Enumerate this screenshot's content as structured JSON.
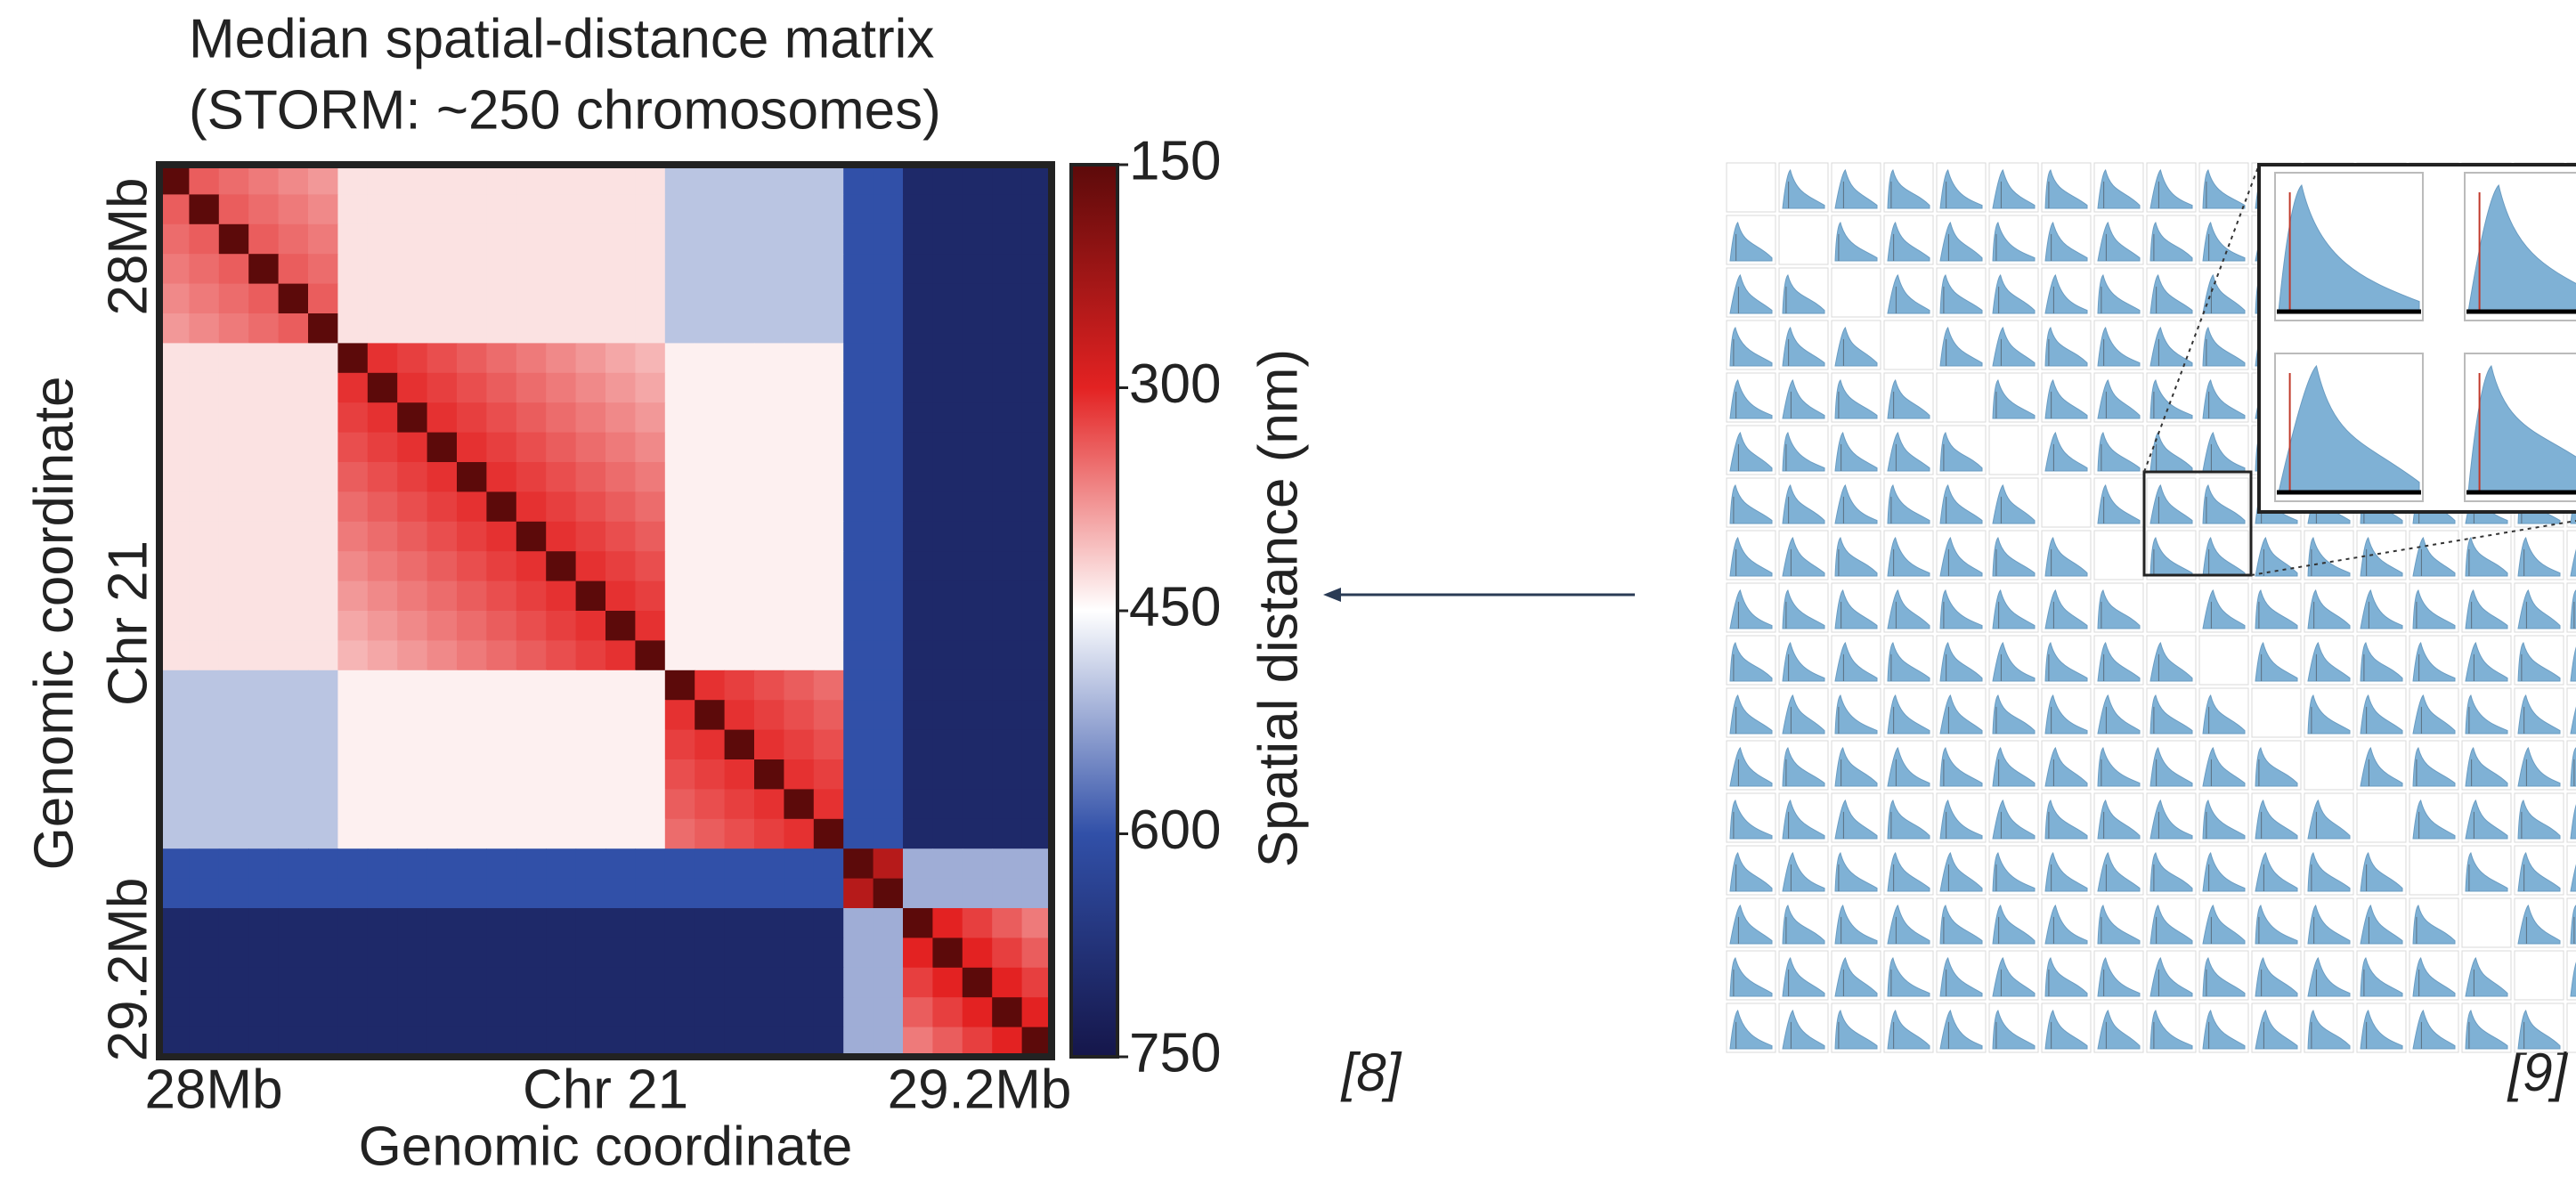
{
  "chart_data": {
    "type": "heatmap",
    "title": [
      "Median spatial-distance matrix",
      "(STORM: ~250 chromosomes)"
    ],
    "x_label": "Genomic coordinate",
    "y_label": [
      "Genomic coordinate",
      "Chr 21"
    ],
    "x_ticklabels": [
      "28Mb",
      "Chr 21",
      "29.2Mb"
    ],
    "y_ticklabels": [
      "28Mb",
      "29.2Mb"
    ],
    "colorbar_label": "Spatial distance (nm)",
    "zlim": [
      150,
      750
    ],
    "zticks": [
      150,
      300,
      450,
      600,
      750
    ],
    "colorscale": [
      "#5c0a0a",
      "#e32222",
      "#ffffff",
      "#3150a8",
      "#15164a"
    ],
    "z": [
      [
        150,
        340,
        350,
        360,
        370,
        380,
        430,
        430,
        430,
        430,
        430,
        430,
        430,
        430,
        430,
        430,
        430,
        500,
        500,
        500,
        500,
        500,
        500,
        600,
        600,
        700,
        700,
        700,
        700,
        700
      ],
      [
        340,
        150,
        340,
        350,
        360,
        370,
        430,
        430,
        430,
        430,
        430,
        430,
        430,
        430,
        430,
        430,
        430,
        500,
        500,
        500,
        500,
        500,
        500,
        600,
        600,
        700,
        700,
        700,
        700,
        700
      ],
      [
        350,
        340,
        150,
        340,
        350,
        360,
        430,
        430,
        430,
        430,
        430,
        430,
        430,
        430,
        430,
        430,
        430,
        500,
        500,
        500,
        500,
        500,
        500,
        600,
        600,
        700,
        700,
        700,
        700,
        700
      ],
      [
        360,
        350,
        340,
        150,
        340,
        350,
        430,
        430,
        430,
        430,
        430,
        430,
        430,
        430,
        430,
        430,
        430,
        500,
        500,
        500,
        500,
        500,
        500,
        600,
        600,
        700,
        700,
        700,
        700,
        700
      ],
      [
        370,
        360,
        350,
        340,
        150,
        340,
        430,
        430,
        430,
        430,
        430,
        430,
        430,
        430,
        430,
        430,
        430,
        500,
        500,
        500,
        500,
        500,
        500,
        600,
        600,
        700,
        700,
        700,
        700,
        700
      ],
      [
        380,
        370,
        360,
        350,
        340,
        150,
        430,
        430,
        430,
        430,
        430,
        430,
        430,
        430,
        430,
        430,
        430,
        500,
        500,
        500,
        500,
        500,
        500,
        600,
        600,
        700,
        700,
        700,
        700,
        700
      ],
      [
        430,
        430,
        430,
        430,
        430,
        430,
        150,
        310,
        320,
        330,
        340,
        350,
        360,
        370,
        380,
        390,
        400,
        440,
        440,
        440,
        440,
        440,
        440,
        600,
        600,
        700,
        700,
        700,
        700,
        700
      ],
      [
        430,
        430,
        430,
        430,
        430,
        430,
        310,
        150,
        310,
        320,
        330,
        340,
        350,
        360,
        370,
        380,
        390,
        440,
        440,
        440,
        440,
        440,
        440,
        600,
        600,
        700,
        700,
        700,
        700,
        700
      ],
      [
        430,
        430,
        430,
        430,
        430,
        430,
        320,
        310,
        150,
        310,
        320,
        330,
        340,
        350,
        360,
        370,
        380,
        440,
        440,
        440,
        440,
        440,
        440,
        600,
        600,
        700,
        700,
        700,
        700,
        700
      ],
      [
        430,
        430,
        430,
        430,
        430,
        430,
        330,
        320,
        310,
        150,
        310,
        320,
        330,
        340,
        350,
        360,
        370,
        440,
        440,
        440,
        440,
        440,
        440,
        600,
        600,
        700,
        700,
        700,
        700,
        700
      ],
      [
        430,
        430,
        430,
        430,
        430,
        430,
        340,
        330,
        320,
        310,
        150,
        310,
        320,
        330,
        340,
        350,
        360,
        440,
        440,
        440,
        440,
        440,
        440,
        600,
        600,
        700,
        700,
        700,
        700,
        700
      ],
      [
        430,
        430,
        430,
        430,
        430,
        430,
        350,
        340,
        330,
        320,
        310,
        150,
        310,
        320,
        330,
        340,
        350,
        440,
        440,
        440,
        440,
        440,
        440,
        600,
        600,
        700,
        700,
        700,
        700,
        700
      ],
      [
        430,
        430,
        430,
        430,
        430,
        430,
        360,
        350,
        340,
        330,
        320,
        310,
        150,
        310,
        320,
        330,
        340,
        440,
        440,
        440,
        440,
        440,
        440,
        600,
        600,
        700,
        700,
        700,
        700,
        700
      ],
      [
        430,
        430,
        430,
        430,
        430,
        430,
        370,
        360,
        350,
        340,
        330,
        320,
        310,
        150,
        310,
        320,
        330,
        440,
        440,
        440,
        440,
        440,
        440,
        600,
        600,
        700,
        700,
        700,
        700,
        700
      ],
      [
        430,
        430,
        430,
        430,
        430,
        430,
        380,
        370,
        360,
        350,
        340,
        330,
        320,
        310,
        150,
        310,
        320,
        440,
        440,
        440,
        440,
        440,
        440,
        600,
        600,
        700,
        700,
        700,
        700,
        700
      ],
      [
        430,
        430,
        430,
        430,
        430,
        430,
        390,
        380,
        370,
        360,
        350,
        340,
        330,
        320,
        310,
        150,
        310,
        440,
        440,
        440,
        440,
        440,
        440,
        600,
        600,
        700,
        700,
        700,
        700,
        700
      ],
      [
        430,
        430,
        430,
        430,
        430,
        430,
        400,
        390,
        380,
        370,
        360,
        350,
        340,
        330,
        320,
        310,
        150,
        440,
        440,
        440,
        440,
        440,
        440,
        600,
        600,
        700,
        700,
        700,
        700,
        700
      ],
      [
        500,
        500,
        500,
        500,
        500,
        500,
        440,
        440,
        440,
        440,
        440,
        440,
        440,
        440,
        440,
        440,
        440,
        150,
        310,
        320,
        330,
        340,
        350,
        600,
        600,
        700,
        700,
        700,
        700,
        700
      ],
      [
        500,
        500,
        500,
        500,
        500,
        500,
        440,
        440,
        440,
        440,
        440,
        440,
        440,
        440,
        440,
        440,
        440,
        310,
        150,
        310,
        320,
        330,
        340,
        600,
        600,
        700,
        700,
        700,
        700,
        700
      ],
      [
        500,
        500,
        500,
        500,
        500,
        500,
        440,
        440,
        440,
        440,
        440,
        440,
        440,
        440,
        440,
        440,
        440,
        320,
        310,
        150,
        310,
        320,
        330,
        600,
        600,
        700,
        700,
        700,
        700,
        700
      ],
      [
        500,
        500,
        500,
        500,
        500,
        500,
        440,
        440,
        440,
        440,
        440,
        440,
        440,
        440,
        440,
        440,
        440,
        330,
        320,
        310,
        150,
        310,
        320,
        600,
        600,
        700,
        700,
        700,
        700,
        700
      ],
      [
        500,
        500,
        500,
        500,
        500,
        500,
        440,
        440,
        440,
        440,
        440,
        440,
        440,
        440,
        440,
        440,
        440,
        340,
        330,
        320,
        310,
        150,
        310,
        600,
        600,
        700,
        700,
        700,
        700,
        700
      ],
      [
        500,
        500,
        500,
        500,
        500,
        500,
        440,
        440,
        440,
        440,
        440,
        440,
        440,
        440,
        440,
        440,
        440,
        350,
        340,
        330,
        320,
        310,
        150,
        600,
        600,
        700,
        700,
        700,
        700,
        700
      ],
      [
        600,
        600,
        600,
        600,
        600,
        600,
        600,
        600,
        600,
        600,
        600,
        600,
        600,
        600,
        600,
        600,
        600,
        600,
        600,
        600,
        600,
        600,
        600,
        150,
        250,
        520,
        520,
        520,
        520,
        520
      ],
      [
        600,
        600,
        600,
        600,
        600,
        600,
        600,
        600,
        600,
        600,
        600,
        600,
        600,
        600,
        600,
        600,
        600,
        600,
        600,
        600,
        600,
        600,
        600,
        250,
        150,
        520,
        520,
        520,
        520,
        520
      ],
      [
        700,
        700,
        700,
        700,
        700,
        700,
        700,
        700,
        700,
        700,
        700,
        700,
        700,
        700,
        700,
        700,
        700,
        700,
        700,
        700,
        700,
        700,
        700,
        520,
        520,
        150,
        300,
        320,
        340,
        360
      ],
      [
        700,
        700,
        700,
        700,
        700,
        700,
        700,
        700,
        700,
        700,
        700,
        700,
        700,
        700,
        700,
        700,
        700,
        700,
        700,
        700,
        700,
        700,
        700,
        520,
        520,
        300,
        150,
        300,
        320,
        340
      ],
      [
        700,
        700,
        700,
        700,
        700,
        700,
        700,
        700,
        700,
        700,
        700,
        700,
        700,
        700,
        700,
        700,
        700,
        700,
        700,
        700,
        700,
        700,
        700,
        520,
        520,
        320,
        300,
        150,
        300,
        320
      ],
      [
        700,
        700,
        700,
        700,
        700,
        700,
        700,
        700,
        700,
        700,
        700,
        700,
        700,
        700,
        700,
        700,
        700,
        700,
        700,
        700,
        700,
        700,
        700,
        520,
        520,
        340,
        320,
        300,
        150,
        300
      ],
      [
        700,
        700,
        700,
        700,
        700,
        700,
        700,
        700,
        700,
        700,
        700,
        700,
        700,
        700,
        700,
        700,
        700,
        700,
        700,
        700,
        700,
        700,
        700,
        520,
        520,
        360,
        340,
        320,
        300,
        150
      ]
    ]
  },
  "citations": [
    "[8]",
    "[9]"
  ]
}
